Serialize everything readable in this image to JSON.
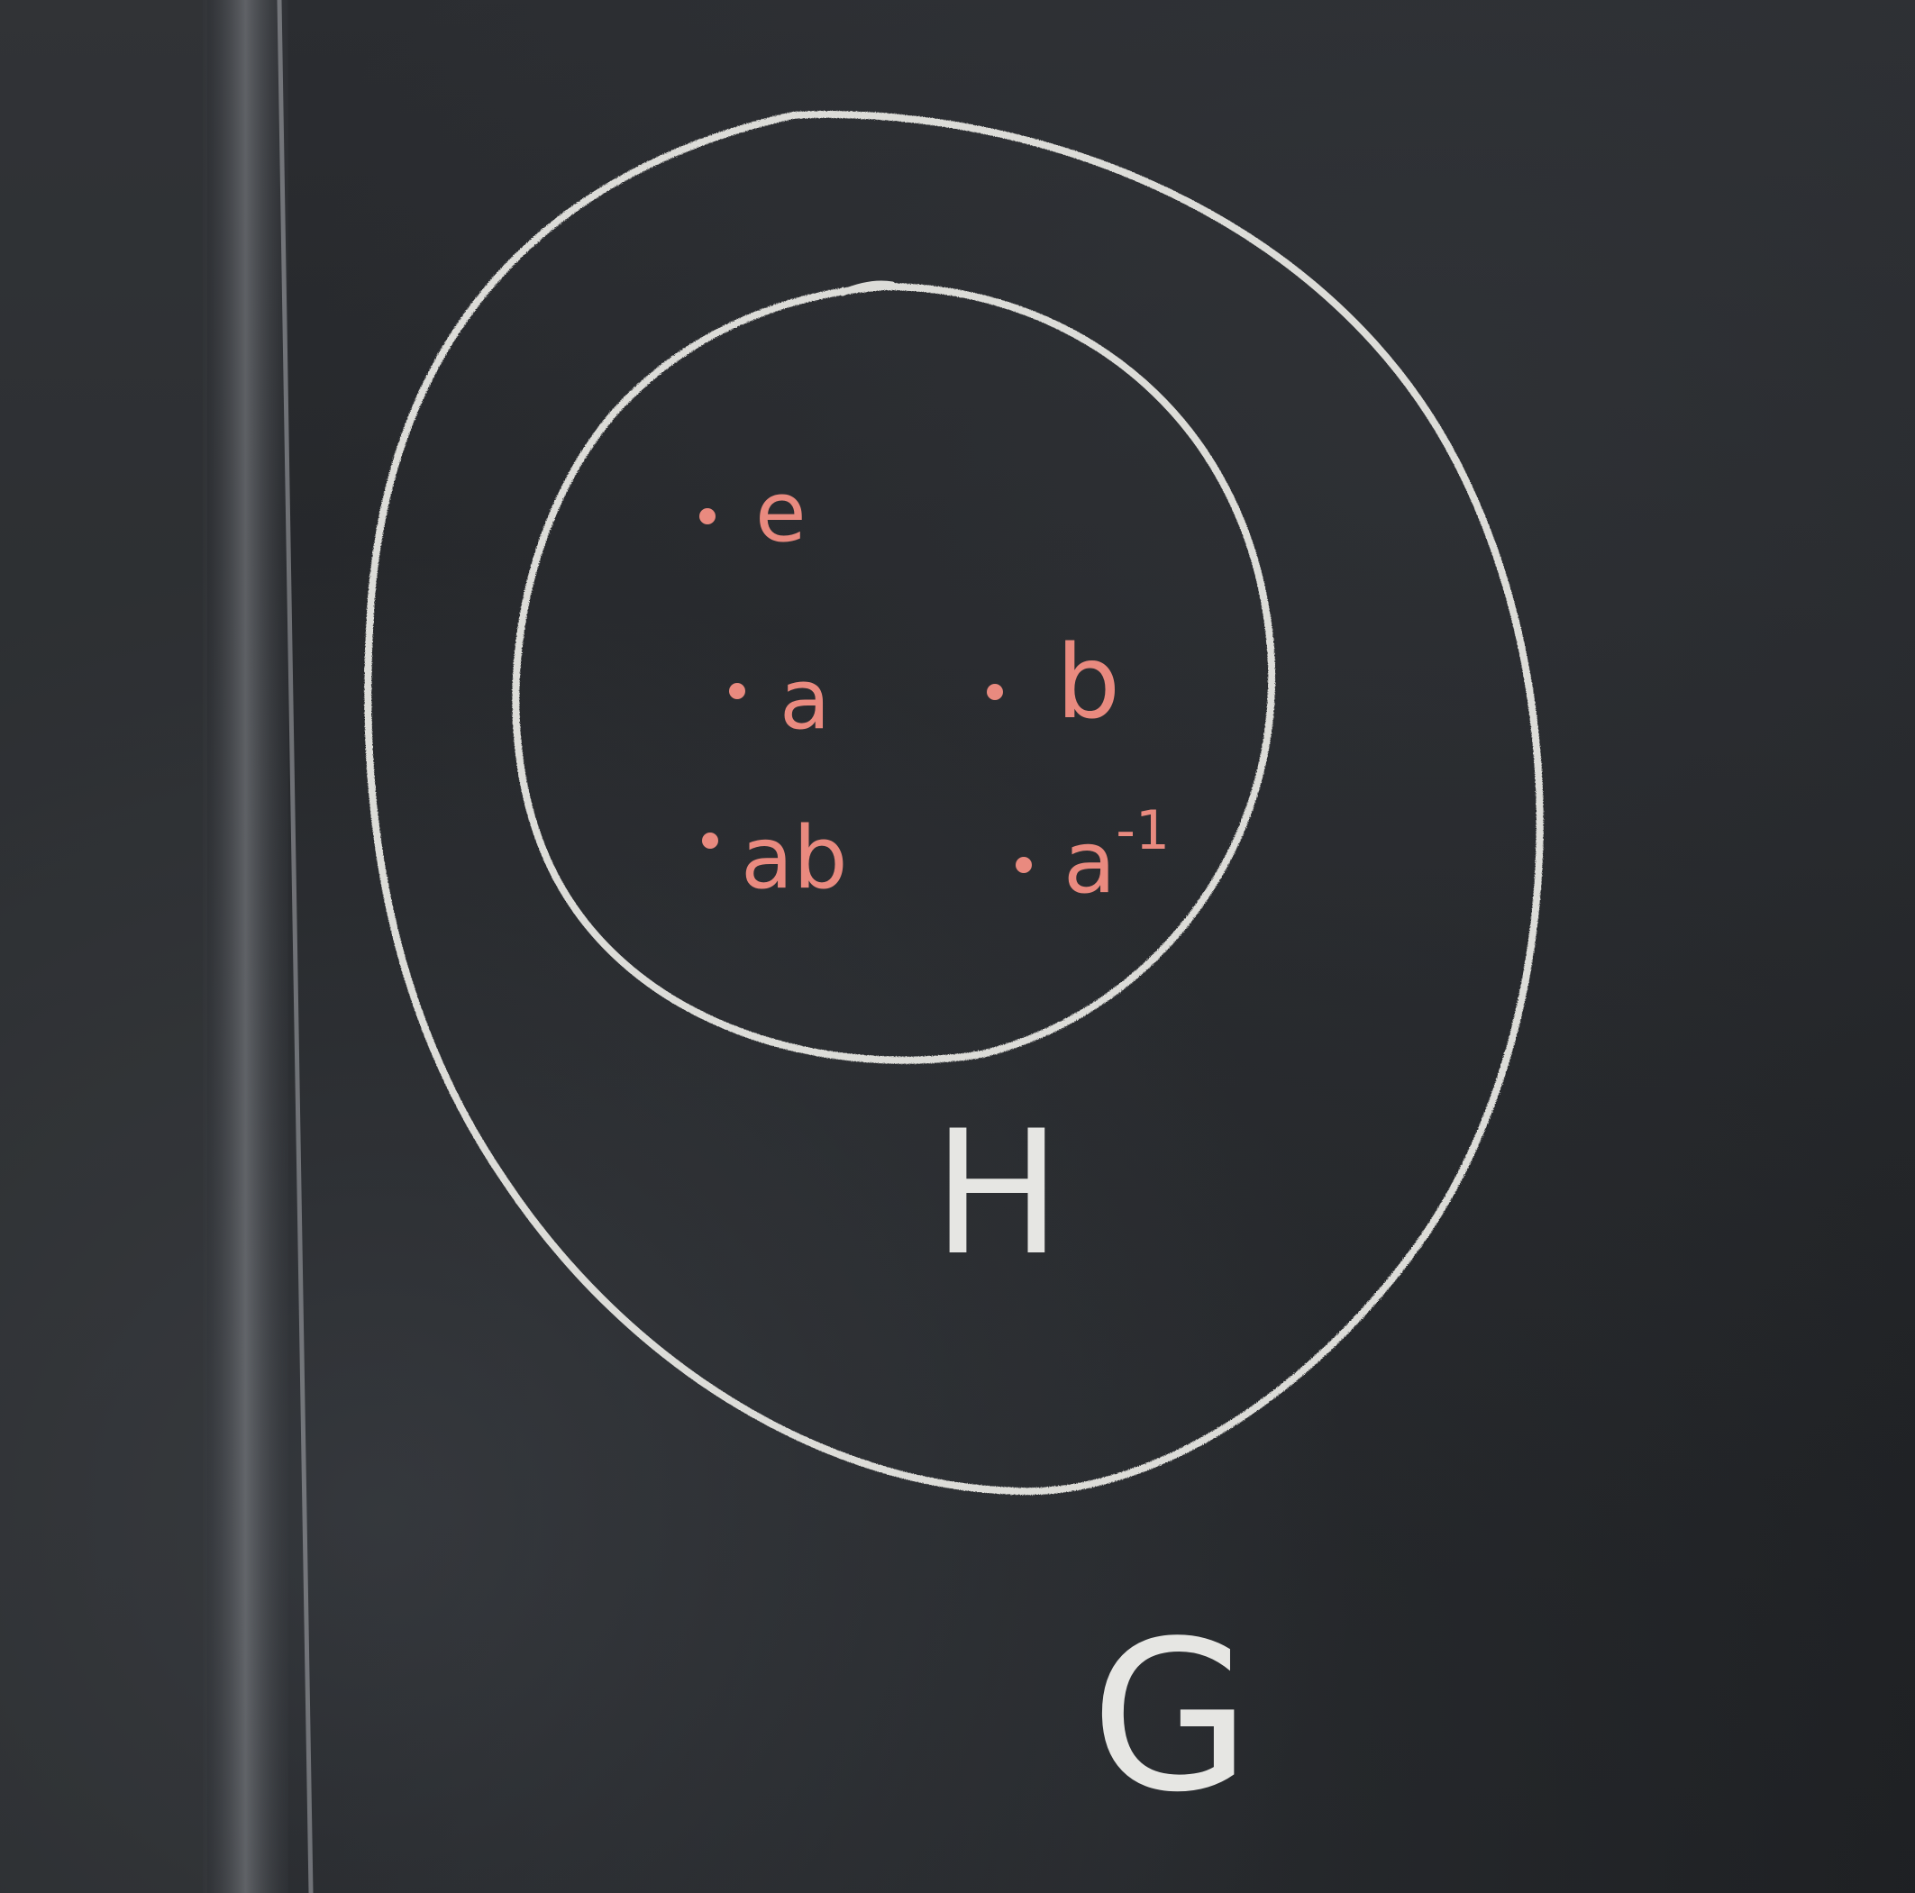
{
  "board": {
    "colors": {
      "background": "#24262a",
      "chalk_white": "#e6e6e3",
      "chalk_pink": "#e98a7f"
    }
  },
  "elements": [
    {
      "key": "e",
      "label": "e"
    },
    {
      "key": "a",
      "label": "a"
    },
    {
      "key": "b",
      "label": "b"
    },
    {
      "key": "ab",
      "label": "ab"
    },
    {
      "key": "a_inv",
      "label": "a",
      "superscript": "-1"
    }
  ],
  "subgroup": {
    "label": "H"
  },
  "group": {
    "label": "G"
  }
}
